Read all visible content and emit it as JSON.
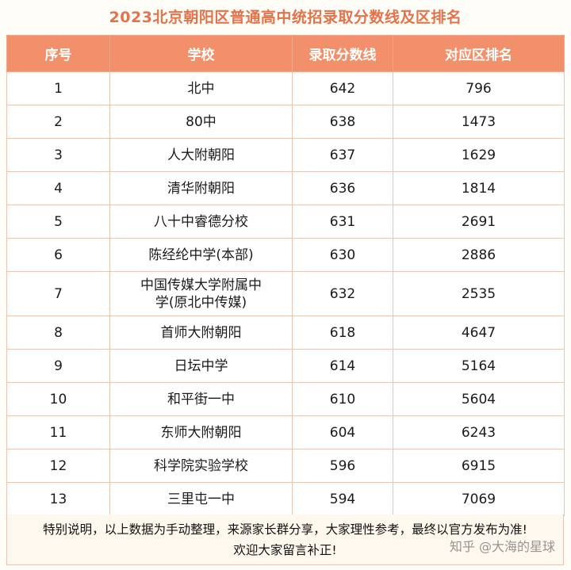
{
  "title": "2023北京朝阳区普通高中统招录取分数线及区排名",
  "headers": [
    "序号",
    "学校",
    "录取分数线",
    "对应区排名"
  ],
  "rows": [
    {
      "no": "1",
      "school": "北中",
      "score": "642",
      "rank": "796"
    },
    {
      "no": "2",
      "school": "80中",
      "score": "638",
      "rank": "1473"
    },
    {
      "no": "3",
      "school": "人大附朝阳",
      "score": "637",
      "rank": "1629"
    },
    {
      "no": "4",
      "school": "清华附朝阳",
      "score": "636",
      "rank": "1814"
    },
    {
      "no": "5",
      "school": "八十中睿德分校",
      "score": "631",
      "rank": "2691"
    },
    {
      "no": "6",
      "school": "陈经纶中学(本部)",
      "score": "630",
      "rank": "2886"
    },
    {
      "no": "7",
      "school_line1": "中国传媒大学附属中",
      "school_line2": "学(原北中传媒)",
      "score": "632",
      "rank": "2535"
    },
    {
      "no": "8",
      "school": "首师大附朝阳",
      "score": "618",
      "rank": "4647"
    },
    {
      "no": "9",
      "school": "日坛中学",
      "score": "614",
      "rank": "5164"
    },
    {
      "no": "10",
      "school": "和平街一中",
      "score": "610",
      "rank": "5604"
    },
    {
      "no": "11",
      "school": "东师大附朝阳",
      "score": "604",
      "rank": "6243"
    },
    {
      "no": "12",
      "school": "科学院实验学校",
      "score": "596",
      "rank": "6915"
    },
    {
      "no": "13",
      "school": "三里屯一中",
      "score": "594",
      "rank": "7069"
    }
  ],
  "note_line1": "特别说明，以上数据为手动整理，来源家长群分享，大家理性参考，最终以官方发布为准!",
  "note_line2": "欢迎大家留言补正!",
  "watermark": "知乎 @大海的星球"
}
